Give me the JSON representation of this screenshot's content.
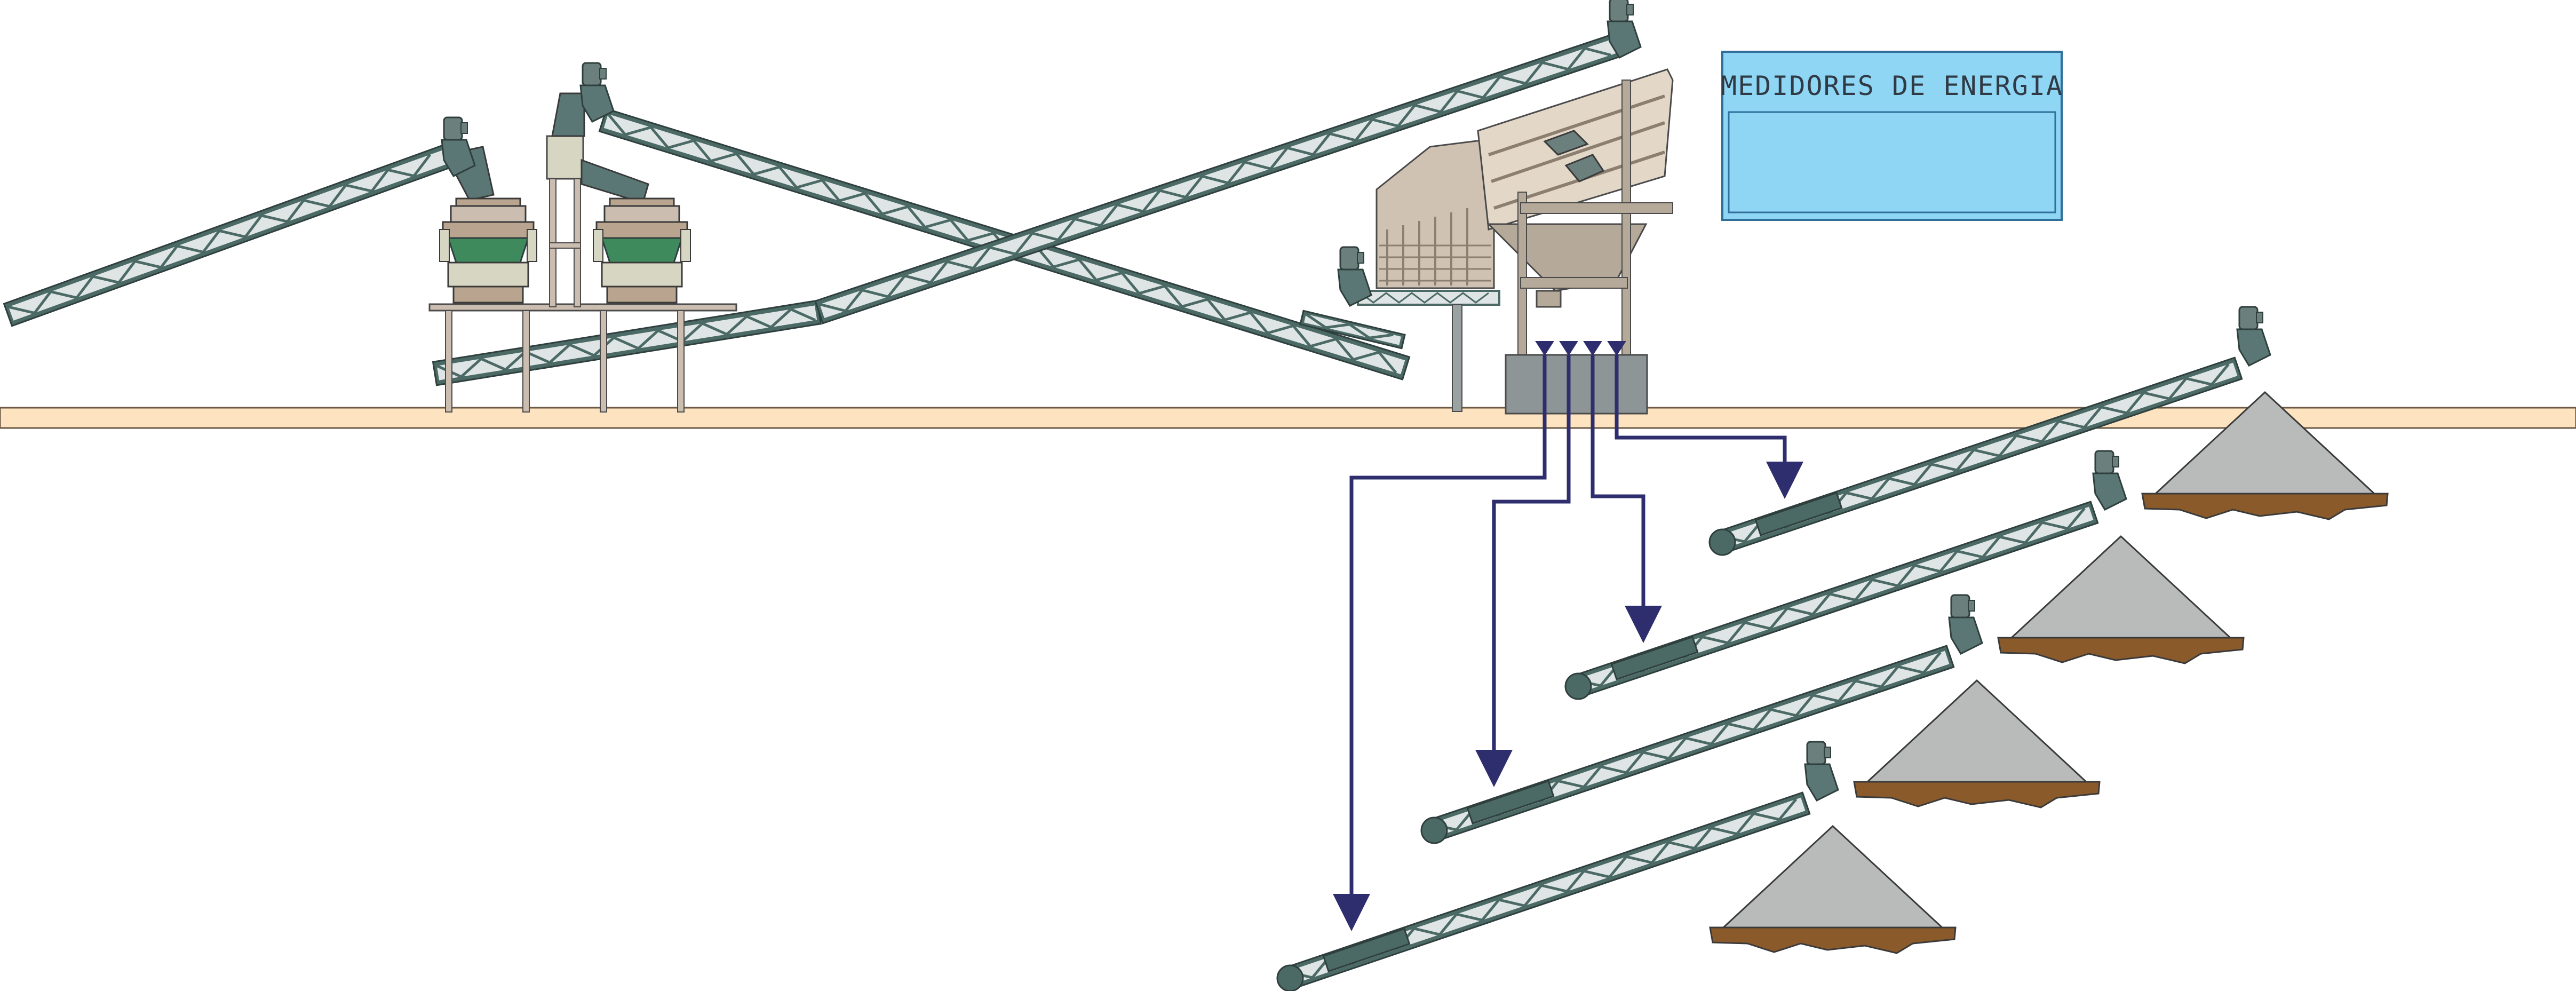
{
  "energy_panel": {
    "title": "MEDIDORES DE ENERGIA",
    "display_value": ""
  },
  "colors": {
    "ground": "#fde3c0",
    "conveyor_frame": "#4b6a66",
    "conveyor_truss": "#dfe5e5",
    "motor": "#6b7f7d",
    "crusher_body": "#3e8a5d",
    "screen_body": "#d9cbbb",
    "bin_base": "#8e9597",
    "flow_line": "#2e2d6d",
    "pile": "#b9bbbb",
    "soil": "#8b5a2b",
    "panel_bg": "#8fd5f4",
    "panel_border": "#2f6f9a"
  },
  "icons": {
    "motor": "motor-icon",
    "flow_arrow": "flow-arrow-icon",
    "discharge_triangle": "discharge-triangle-icon"
  }
}
